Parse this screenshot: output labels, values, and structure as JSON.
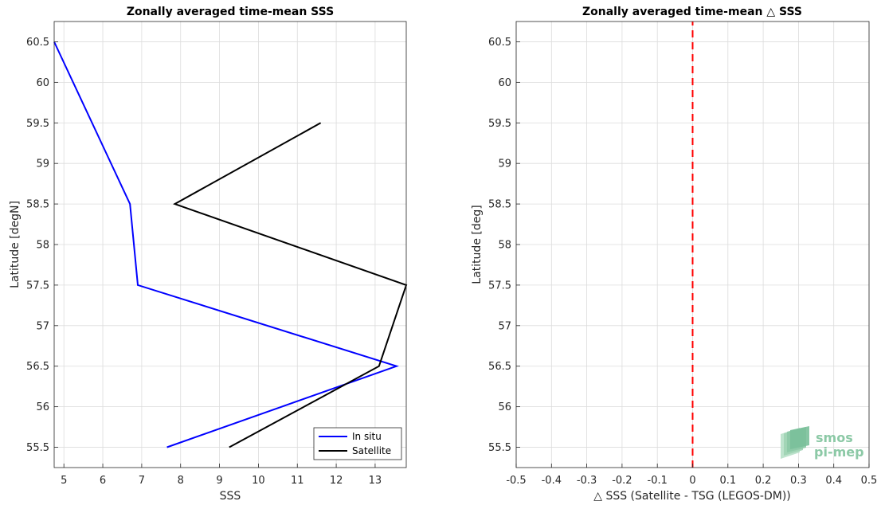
{
  "chart_data": [
    {
      "type": "line",
      "title": "Zonally averaged time-mean SSS",
      "xlabel": "SSS",
      "ylabel": "Latitude [degN]",
      "xlim": [
        4.75,
        13.8
      ],
      "ylim": [
        55.25,
        60.75
      ],
      "xticks": [
        "5",
        "6",
        "7",
        "8",
        "9",
        "10",
        "11",
        "12",
        "13"
      ],
      "yticks": [
        "55.5",
        "56",
        "56.5",
        "57",
        "57.5",
        "58",
        "58.5",
        "59",
        "59.5",
        "60",
        "60.5"
      ],
      "grid": true,
      "legend_position": "bottom-right",
      "series": [
        {
          "name": "In situ",
          "color": "#0000ff",
          "x": [
            7.65,
            13.55,
            6.9,
            6.7,
            4.75
          ],
          "y": [
            55.5,
            56.5,
            57.5,
            58.5,
            60.5
          ]
        },
        {
          "name": "Satellite",
          "color": "#000000",
          "x": [
            9.25,
            13.1,
            13.8,
            7.85,
            11.6
          ],
          "y": [
            55.5,
            56.5,
            57.5,
            58.5,
            59.5
          ]
        }
      ]
    },
    {
      "type": "line",
      "title": "Zonally averaged time-mean △ SSS",
      "xlabel": "△ SSS (Satellite - TSG (LEGOS-DM))",
      "ylabel": "Latitude [deg]",
      "xlim": [
        -0.5,
        0.5
      ],
      "ylim": [
        55.25,
        60.75
      ],
      "xticks": [
        "-0.5",
        "-0.4",
        "-0.3",
        "-0.2",
        "-0.1",
        "0",
        "0.1",
        "0.2",
        "0.3",
        "0.4",
        "0.5"
      ],
      "yticks": [
        "55.5",
        "56",
        "56.5",
        "57",
        "57.5",
        "58",
        "58.5",
        "59",
        "59.5",
        "60",
        "60.5"
      ],
      "grid": true,
      "series": [
        {
          "color": "#ff0000",
          "style": "dashed",
          "x": [
            0,
            0
          ],
          "y": [
            55.25,
            60.75
          ]
        }
      ]
    }
  ],
  "watermark": {
    "line1": "smos",
    "line2": "pi-mep",
    "color": "#8cc9a6"
  }
}
